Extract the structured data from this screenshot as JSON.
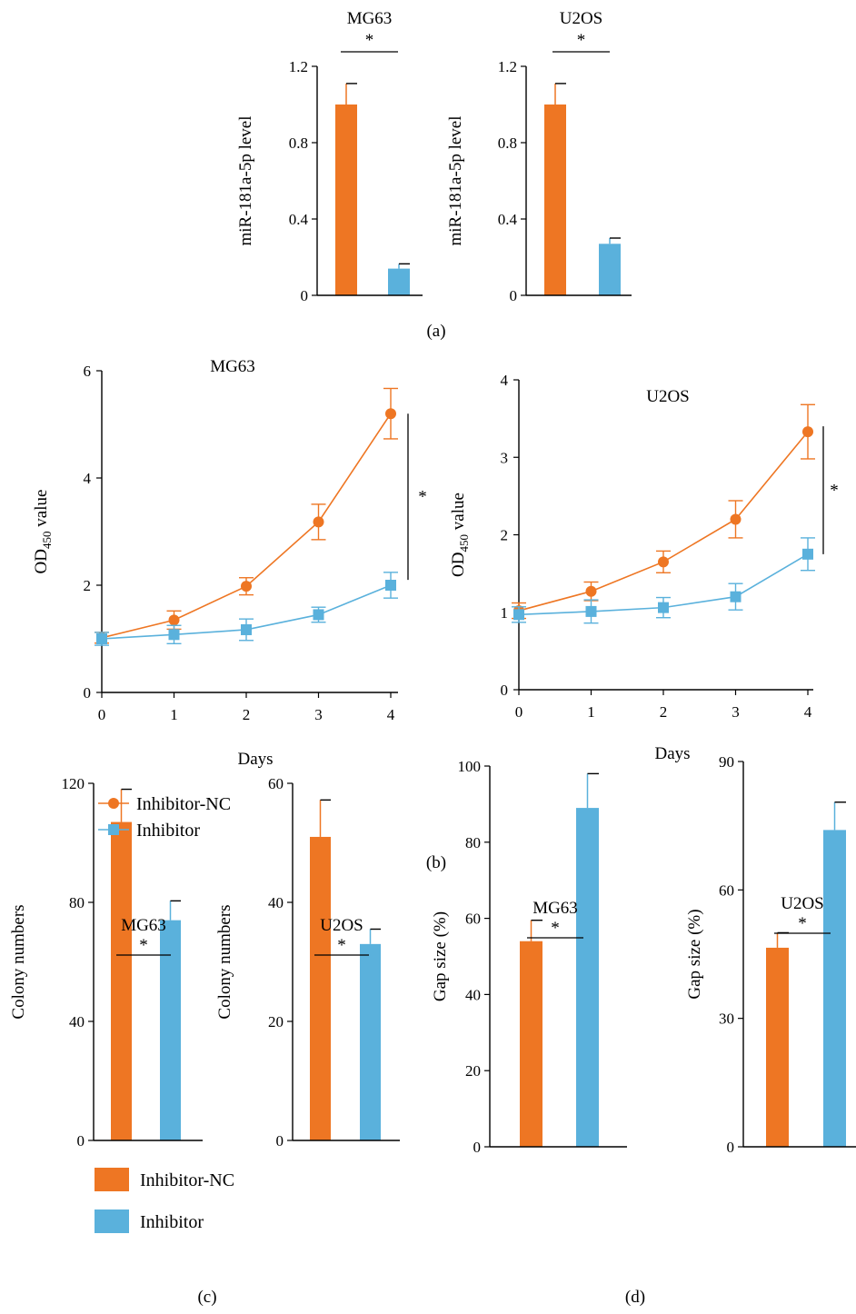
{
  "colors": {
    "nc": "#ee7623",
    "inh": "#5ab1dc"
  },
  "panel_labels": {
    "a": "(a)",
    "b": "(b)",
    "c": "(c)",
    "d": "(d)"
  },
  "legend_b": {
    "nc": "Inhibitor-NC",
    "inh": "Inhibitor"
  },
  "legend_c": {
    "nc": "Inhibitor-NC",
    "inh": "Inhibitor"
  },
  "chart_data": [
    {
      "id": "a1",
      "type": "bar",
      "title": "MG63",
      "ylabel": "miR-181a-5p level",
      "ylim": [
        0,
        1.2
      ],
      "yticks": [
        0,
        0.4,
        0.8,
        1.2
      ],
      "ytick_labels": [
        "0",
        "0.4",
        "0.8",
        "1.2"
      ],
      "series": [
        {
          "values": [
            1.0
          ],
          "err": [
            0.11
          ]
        },
        {
          "values": [
            0.14
          ],
          "err": [
            0.025
          ]
        }
      ],
      "significance": "*"
    },
    {
      "id": "a2",
      "type": "bar",
      "title": "U2OS",
      "ylabel": "miR-181a-5p level",
      "ylim": [
        0,
        1.2
      ],
      "yticks": [
        0,
        0.4,
        0.8,
        1.2
      ],
      "ytick_labels": [
        "0",
        "0.4",
        "0.8",
        "1.2"
      ],
      "series": [
        {
          "values": [
            1.0
          ],
          "err": [
            0.11
          ]
        },
        {
          "values": [
            0.27
          ],
          "err": [
            0.03
          ]
        }
      ],
      "significance": "*"
    },
    {
      "id": "b1",
      "type": "line",
      "title": "MG63",
      "xlabel": "Days",
      "ylabel_main": "OD",
      "ylabel_sub": "450",
      "ylabel_tail": " value",
      "x": [
        0,
        1,
        2,
        3,
        4
      ],
      "xlim": [
        0,
        4
      ],
      "ylim": [
        0,
        6
      ],
      "yticks": [
        0,
        2,
        4,
        6
      ],
      "ytick_labels": [
        "0",
        "2",
        "4",
        "6"
      ],
      "xtick_labels": [
        "0",
        "1",
        "2",
        "3",
        "4"
      ],
      "series": [
        {
          "name": "Inhibitor-NC",
          "values": [
            1.02,
            1.35,
            1.98,
            3.18,
            5.2
          ],
          "err": [
            0.1,
            0.17,
            0.16,
            0.33,
            0.47
          ]
        },
        {
          "name": "Inhibitor",
          "values": [
            1.0,
            1.08,
            1.17,
            1.45,
            2.0
          ],
          "err": [
            0.12,
            0.17,
            0.2,
            0.14,
            0.24
          ]
        }
      ],
      "significance": "*"
    },
    {
      "id": "b2",
      "type": "line",
      "title": "U2OS",
      "xlabel": "Days",
      "ylabel_main": "OD",
      "ylabel_sub": "450",
      "ylabel_tail": " value",
      "x": [
        0,
        1,
        2,
        3,
        4
      ],
      "xlim": [
        0,
        4
      ],
      "ylim": [
        0,
        4
      ],
      "yticks": [
        0,
        1,
        2,
        3,
        4
      ],
      "ytick_labels": [
        "0",
        "1",
        "2",
        "3",
        "4"
      ],
      "xtick_labels": [
        "0",
        "1",
        "2",
        "3",
        "4"
      ],
      "series": [
        {
          "name": "Inhibitor-NC",
          "values": [
            1.02,
            1.27,
            1.65,
            2.2,
            3.33
          ],
          "err": [
            0.1,
            0.12,
            0.14,
            0.24,
            0.35
          ]
        },
        {
          "name": "Inhibitor",
          "values": [
            0.97,
            1.01,
            1.06,
            1.2,
            1.75
          ],
          "err": [
            0.1,
            0.15,
            0.13,
            0.17,
            0.21
          ]
        }
      ],
      "significance": "*"
    },
    {
      "id": "c1",
      "type": "bar",
      "title": "MG63",
      "ylabel": "Colony numbers",
      "ylim": [
        0,
        120
      ],
      "yticks": [
        0,
        40,
        80,
        120
      ],
      "ytick_labels": [
        "0",
        "40",
        "80",
        "120"
      ],
      "series": [
        {
          "values": [
            107
          ],
          "err": [
            11
          ]
        },
        {
          "values": [
            74
          ],
          "err": [
            6.5
          ]
        }
      ],
      "significance": "*"
    },
    {
      "id": "c2",
      "type": "bar",
      "title": "U2OS",
      "ylabel": "Colony numbers",
      "ylim": [
        0,
        60
      ],
      "yticks": [
        0,
        20,
        40,
        60
      ],
      "ytick_labels": [
        "0",
        "20",
        "40",
        "60"
      ],
      "series": [
        {
          "values": [
            51
          ],
          "err": [
            6.2
          ]
        },
        {
          "values": [
            33
          ],
          "err": [
            2.5
          ]
        }
      ],
      "significance": "*"
    },
    {
      "id": "d1",
      "type": "bar",
      "title": "MG63",
      "ylabel": "Gap size (%)",
      "ylim": [
        0,
        100
      ],
      "yticks": [
        0,
        20,
        40,
        60,
        80,
        100
      ],
      "ytick_labels": [
        "0",
        "20",
        "40",
        "60",
        "80",
        "100"
      ],
      "series": [
        {
          "values": [
            54
          ],
          "err": [
            5.5
          ]
        },
        {
          "values": [
            89
          ],
          "err": [
            9
          ]
        }
      ],
      "significance": "*"
    },
    {
      "id": "d2",
      "type": "bar",
      "title": "U2OS",
      "ylabel": "Gap size (%)",
      "ylim": [
        0,
        90
      ],
      "yticks": [
        0,
        30,
        60,
        90
      ],
      "ytick_labels": [
        "0",
        "30",
        "60",
        "90"
      ],
      "series": [
        {
          "values": [
            46.5
          ],
          "err": [
            3.5
          ]
        },
        {
          "values": [
            74
          ],
          "err": [
            6.5
          ]
        }
      ],
      "significance": "*"
    }
  ]
}
